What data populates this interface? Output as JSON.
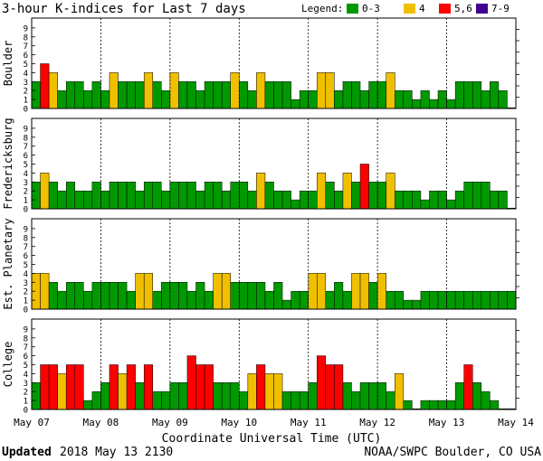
{
  "title": "3-hour K-indices for Last 7 days",
  "legend": {
    "label": "Legend:",
    "items": [
      {
        "label": "0-3",
        "color": "#009900"
      },
      {
        "label": "4",
        "color": "#f0c000"
      },
      {
        "label": "5,6",
        "color": "#ff0000"
      },
      {
        "label": "7-9",
        "color": "#400090"
      }
    ]
  },
  "xaxis": {
    "label": "Coordinate Universal Time (UTC)",
    "ticks": [
      "May 07",
      "May 08",
      "May 09",
      "May 10",
      "May 11",
      "May 12",
      "May 13",
      "May 14"
    ]
  },
  "footer": {
    "updated_label": "Updated",
    "updated_value": "2018 May 13 2130",
    "source": "NOAA/SWPC Boulder, CO USA"
  },
  "chart_data": [
    {
      "type": "bar",
      "station": "Boulder",
      "ylim": [
        0,
        9
      ],
      "yticks": [
        0,
        1,
        2,
        3,
        4,
        5,
        6,
        7,
        8,
        9
      ],
      "values": [
        3,
        5,
        4,
        2,
        3,
        3,
        2,
        3,
        2,
        4,
        3,
        3,
        3,
        4,
        3,
        2,
        4,
        3,
        3,
        2,
        3,
        3,
        3,
        4,
        3,
        2,
        4,
        3,
        3,
        3,
        1,
        2,
        2,
        4,
        4,
        2,
        3,
        3,
        2,
        3,
        3,
        4,
        2,
        2,
        1,
        2,
        1,
        2,
        1,
        3,
        3,
        3,
        2,
        3,
        2,
        0
      ]
    },
    {
      "type": "bar",
      "station": "Fredericksburg",
      "ylim": [
        0,
        9
      ],
      "yticks": [
        0,
        1,
        2,
        3,
        4,
        5,
        6,
        7,
        8,
        9
      ],
      "values": [
        3,
        4,
        3,
        2,
        3,
        2,
        2,
        3,
        2,
        3,
        3,
        3,
        2,
        3,
        3,
        2,
        3,
        3,
        3,
        2,
        3,
        3,
        2,
        3,
        3,
        2,
        4,
        3,
        2,
        2,
        1,
        2,
        2,
        4,
        3,
        2,
        4,
        3,
        5,
        3,
        3,
        4,
        2,
        2,
        2,
        1,
        2,
        2,
        1,
        2,
        3,
        3,
        3,
        2,
        2,
        0
      ]
    },
    {
      "type": "bar",
      "station": "Est. Planetary",
      "ylim": [
        0,
        9
      ],
      "yticks": [
        0,
        1,
        2,
        3,
        4,
        5,
        6,
        7,
        8,
        9
      ],
      "values": [
        4,
        4,
        3,
        2,
        3,
        3,
        2,
        3,
        3,
        3,
        3,
        2,
        4,
        4,
        2,
        3,
        3,
        3,
        2,
        3,
        2,
        4,
        4,
        3,
        3,
        3,
        3,
        2,
        3,
        1,
        2,
        2,
        4,
        4,
        2,
        3,
        2,
        4,
        4,
        3,
        4,
        2,
        2,
        1,
        1,
        2,
        2,
        2,
        2,
        2,
        2,
        2,
        2,
        2,
        2,
        2
      ]
    },
    {
      "type": "bar",
      "station": "College",
      "ylim": [
        0,
        9
      ],
      "yticks": [
        0,
        1,
        2,
        3,
        4,
        5,
        6,
        7,
        8,
        9
      ],
      "values": [
        3,
        5,
        5,
        4,
        5,
        5,
        1,
        2,
        3,
        5,
        4,
        5,
        3,
        5,
        2,
        2,
        3,
        3,
        6,
        5,
        5,
        3,
        3,
        3,
        2,
        4,
        5,
        4,
        4,
        2,
        2,
        2,
        3,
        6,
        5,
        5,
        3,
        2,
        3,
        3,
        3,
        2,
        4,
        1,
        0,
        1,
        1,
        1,
        1,
        3,
        5,
        3,
        2,
        1,
        0,
        0
      ]
    }
  ]
}
